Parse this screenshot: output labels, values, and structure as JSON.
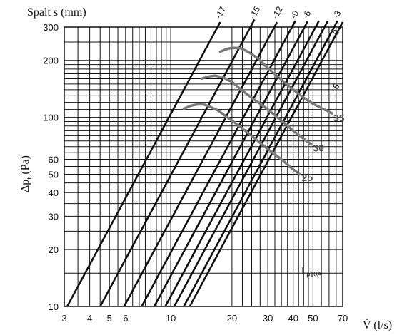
{
  "chart_data": {
    "type": "line",
    "title": "Spalt s (mm)",
    "xlabel": "V̇ (l/s)",
    "ylabel": "Δp_t (Pa)",
    "ylabel_main": "Δp",
    "ylabel_sub": "t",
    "ylabel_unit": "(Pa)",
    "x_scale": "log",
    "y_scale": "log",
    "xlim": [
      3,
      70
    ],
    "ylim": [
      10,
      300
    ],
    "grid": true,
    "x_ticks": [
      3,
      4,
      5,
      6,
      10,
      20,
      30,
      40,
      50,
      70
    ],
    "x_tick_labels": [
      "3",
      "4",
      "5",
      "6",
      "10",
      "20",
      "30",
      "40",
      "50",
      "70"
    ],
    "y_ticks": [
      10,
      20,
      30,
      40,
      50,
      60,
      100,
      200,
      300
    ],
    "y_tick_labels": [
      "10",
      "20",
      "30",
      "40",
      "50",
      "60",
      "100",
      "200",
      "300"
    ],
    "x_grid": [
      3,
      3.5,
      4,
      4.5,
      5,
      5.5,
      6,
      6.5,
      7,
      7.5,
      8,
      8.5,
      9,
      9.5,
      10,
      20,
      22.5,
      25,
      27.5,
      30,
      32.5,
      35,
      37.5,
      40,
      42.5,
      45,
      47.5,
      50,
      55,
      60,
      65,
      70
    ],
    "y_grid": [
      10,
      15,
      20,
      25,
      30,
      35,
      40,
      45,
      50,
      55,
      60,
      65,
      70,
      75,
      80,
      85,
      90,
      95,
      100,
      110,
      120,
      130,
      140,
      150,
      160,
      170,
      180,
      190,
      200,
      250,
      300
    ],
    "gap_lines": [
      {
        "name": "-17",
        "x": [
          3.1,
          17.5
        ]
      },
      {
        "name": "-15",
        "x": [
          4.5,
          25.8
        ]
      },
      {
        "name": "-12",
        "x": [
          5.9,
          33.3
        ]
      },
      {
        "name": "-9",
        "x": [
          7.2,
          41
        ]
      },
      {
        "name": "-6",
        "x": [
          8.3,
          47
        ]
      },
      {
        "name": "-3",
        "x": [
          9.4,
          53.5
        ]
      },
      {
        "name": "0",
        "x": [
          10.4,
          59
        ]
      },
      {
        "name": "",
        "x": [
          11.6,
          66
        ]
      },
      {
        "name": "5",
        "x": [
          12.4,
          70
        ]
      }
    ],
    "gap_label_pos": [
      {
        "text": "-17",
        "x": 17.5,
        "y": 330
      },
      {
        "text": "-15",
        "x": 25.8,
        "y": 330
      },
      {
        "text": "-12",
        "x": 33.3,
        "y": 330
      },
      {
        "text": "-9",
        "x": 41,
        "y": 330
      },
      {
        "text": "-6",
        "x": 47,
        "y": 330
      },
      {
        "text": "-3",
        "x": 66,
        "y": 330
      },
      {
        "text": "0",
        "x": 66,
        "y": 270
      },
      {
        "text": "5",
        "x": 66,
        "y": 140
      }
    ],
    "series": [
      {
        "name": "35",
        "x": [
          17.5,
          18.5,
          20,
          22,
          24,
          27,
          30,
          35,
          40,
          45,
          50,
          55,
          62
        ],
        "y": [
          222,
          228,
          233,
          232,
          222,
          204,
          182,
          158,
          140,
          127,
          118,
          112,
          105
        ]
      },
      {
        "name": "30",
        "x": [
          14.2,
          15.2,
          16.5,
          18,
          20,
          22,
          25,
          30,
          35,
          40,
          45,
          49
        ],
        "y": [
          160,
          164,
          166,
          163,
          154,
          141,
          127,
          110,
          96,
          85,
          77,
          72
        ]
      },
      {
        "name": "25",
        "x": [
          11.6,
          12.5,
          13.5,
          14.5,
          15.5,
          17,
          19,
          22,
          26,
          30,
          35,
          40,
          43
        ],
        "y": [
          111,
          115,
          117,
          117,
          114,
          109,
          100,
          89,
          77,
          68,
          60,
          53,
          50
        ]
      }
    ],
    "series_labels": [
      {
        "text": "35",
        "x": 63,
        "y": 95
      },
      {
        "text": "30",
        "x": 50,
        "y": 66
      },
      {
        "text": "25",
        "x": 44,
        "y": 46
      }
    ],
    "annotation": {
      "main": "L",
      "sub": "p10A",
      "x": 44,
      "y": 15
    }
  }
}
